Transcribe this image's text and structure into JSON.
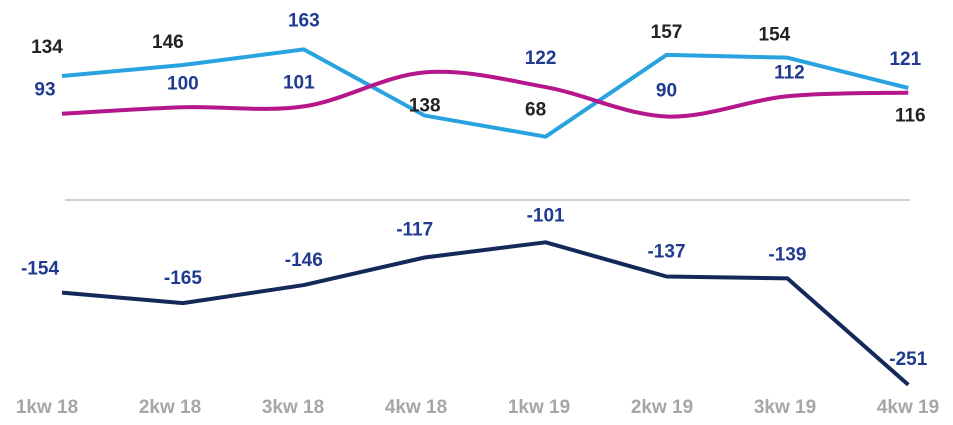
{
  "chart_data": [
    {
      "type": "line",
      "ylim": [
        10,
        195
      ],
      "series": [
        {
          "color": "#29a3e0",
          "smooth": false,
          "values": [
            134,
            146,
            163,
            91,
            68,
            157,
            154,
            121
          ],
          "value_labels": [
            "134",
            "146",
            "163",
            null,
            "68",
            "157",
            "154",
            "121"
          ],
          "label_colors": [
            "#222222",
            "#222222",
            "#1f3a8f",
            null,
            "#222222",
            "#222222",
            "#222222",
            "#1f3a8f"
          ]
        },
        {
          "color": "#b5168c",
          "smooth": true,
          "values": [
            93,
            100,
            101,
            138,
            122,
            90,
            112,
            116
          ],
          "label_colors": [
            "#1f3a8f",
            "#1f3a8f",
            "#1f3a8f",
            "#222222",
            "#1f3a8f",
            "#1f3a8f",
            "#1f3a8f",
            "#222222"
          ]
        }
      ]
    },
    {
      "type": "line",
      "categories": [
        "1kw 18",
        "2kw 18",
        "3kw 18",
        "4kw 18",
        "1kw 19",
        "2kw 19",
        "3kw 19",
        "4kw 19"
      ],
      "category_color": "#a6a6a6",
      "ylim": [
        -267,
        -67
      ],
      "series": [
        {
          "color": "#14285a",
          "smooth": false,
          "values": [
            -154,
            -165,
            -146,
            -117,
            -101,
            -137,
            -139,
            -251
          ],
          "label_colors": [
            "#1f3a8f",
            "#1f3a8f",
            "#1f3a8f",
            "#1f3a8f",
            "#1f3a8f",
            "#1f3a8f",
            "#1f3a8f",
            "#1f3a8f"
          ]
        }
      ]
    }
  ]
}
